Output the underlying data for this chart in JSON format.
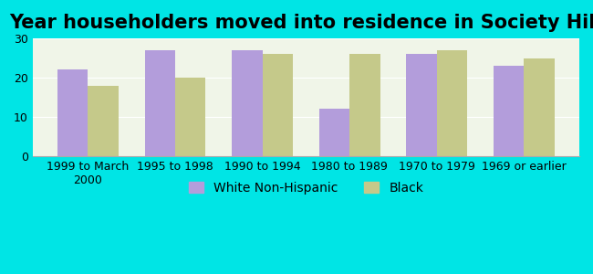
{
  "title": "Year householders moved into residence in Society Hill",
  "categories": [
    "1999 to March\n2000",
    "1995 to 1998",
    "1990 to 1994",
    "1980 to 1989",
    "1970 to 1979",
    "1969 or earlier"
  ],
  "white_values": [
    22,
    27,
    27,
    12,
    26,
    23
  ],
  "black_values": [
    18,
    20,
    26,
    26,
    27,
    25
  ],
  "white_color": "#b39ddb",
  "black_color": "#c5c98a",
  "background_color": "#00e5e5",
  "plot_bg_color": "#f0f5e8",
  "ylim": [
    0,
    30
  ],
  "yticks": [
    0,
    10,
    20,
    30
  ],
  "bar_width": 0.35,
  "legend_white": "White Non-Hispanic",
  "legend_black": "Black",
  "title_fontsize": 15,
  "tick_fontsize": 9
}
